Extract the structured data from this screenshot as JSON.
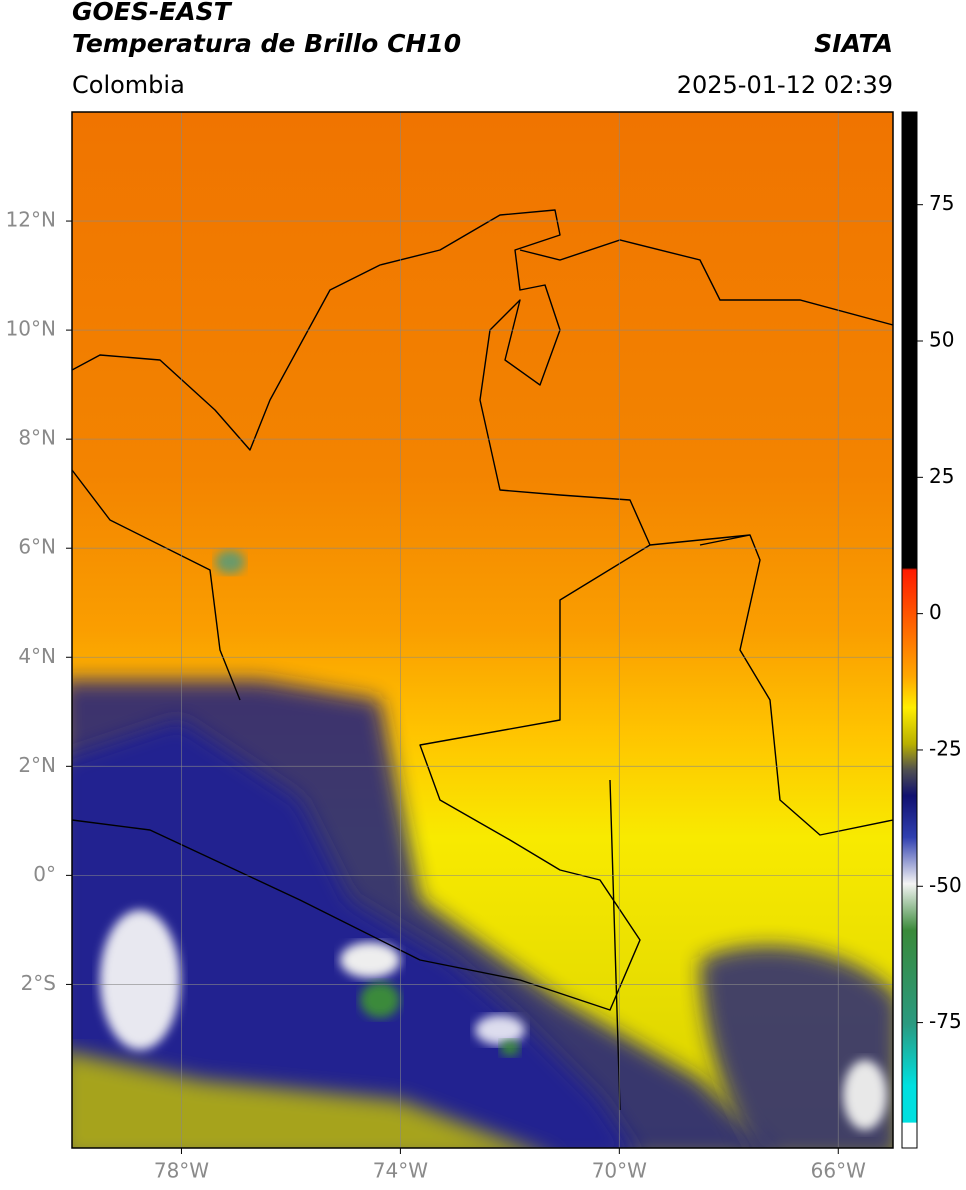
{
  "map": {
    "title": "GOES-EAST",
    "subtitle": "Temperatura de Brillo CH10",
    "source": "SIATA",
    "region": "Colombia",
    "datetime": "2025-01-12 02:39",
    "xlim": [
      -80,
      -65
    ],
    "ylim": [
      -5,
      14
    ],
    "xticks": [
      {
        "value": -78,
        "label": "78°W"
      },
      {
        "value": -74,
        "label": "74°W"
      },
      {
        "value": -70,
        "label": "70°W"
      },
      {
        "value": -66,
        "label": "66°W"
      }
    ],
    "yticks": [
      {
        "value": 12,
        "label": "12°N"
      },
      {
        "value": 10,
        "label": "10°N"
      },
      {
        "value": 8,
        "label": "8°N"
      },
      {
        "value": 6,
        "label": "6°N"
      },
      {
        "value": 4,
        "label": "4°N"
      },
      {
        "value": 2,
        "label": "2°N"
      },
      {
        "value": 0,
        "label": "0°"
      },
      {
        "value": -2,
        "label": "2°S"
      }
    ],
    "grid": true,
    "colorbar": {
      "lim": [
        -98,
        92
      ],
      "ticks": [
        75,
        50,
        25,
        0,
        -25,
        -50,
        -75
      ]
    }
  }
}
